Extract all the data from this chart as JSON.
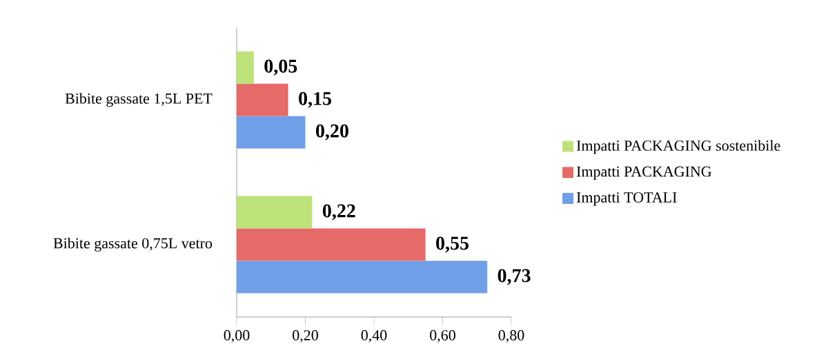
{
  "chart_data": {
    "type": "bar",
    "orientation": "horizontal",
    "categories": [
      "Bibite gassate 1,5L PET",
      "Bibite gassate 0,75L vetro"
    ],
    "series": [
      {
        "name": "Impatti TOTALI",
        "color": "#6f9fe6",
        "values": [
          0.2,
          0.73
        ],
        "value_labels": [
          "0,20",
          "0,73"
        ]
      },
      {
        "name": "Impatti PACKAGING",
        "color": "#e56a68",
        "values": [
          0.15,
          0.55
        ],
        "value_labels": [
          "0,15",
          "0,55"
        ]
      },
      {
        "name": "Impatti PACKAGING sostenibile",
        "color": "#bde27a",
        "values": [
          0.05,
          0.22
        ],
        "value_labels": [
          "0,05",
          "0,22"
        ]
      }
    ],
    "xlim": [
      0,
      0.8
    ],
    "xticks": [
      {
        "value": 0,
        "label": "0,00"
      },
      {
        "value": 0.2,
        "label": "0,20"
      },
      {
        "value": 0.4,
        "label": "0,40"
      },
      {
        "value": 0.6,
        "label": "0,60"
      },
      {
        "value": 0.8,
        "label": "0,80"
      }
    ],
    "grid": false,
    "legend": "right"
  }
}
